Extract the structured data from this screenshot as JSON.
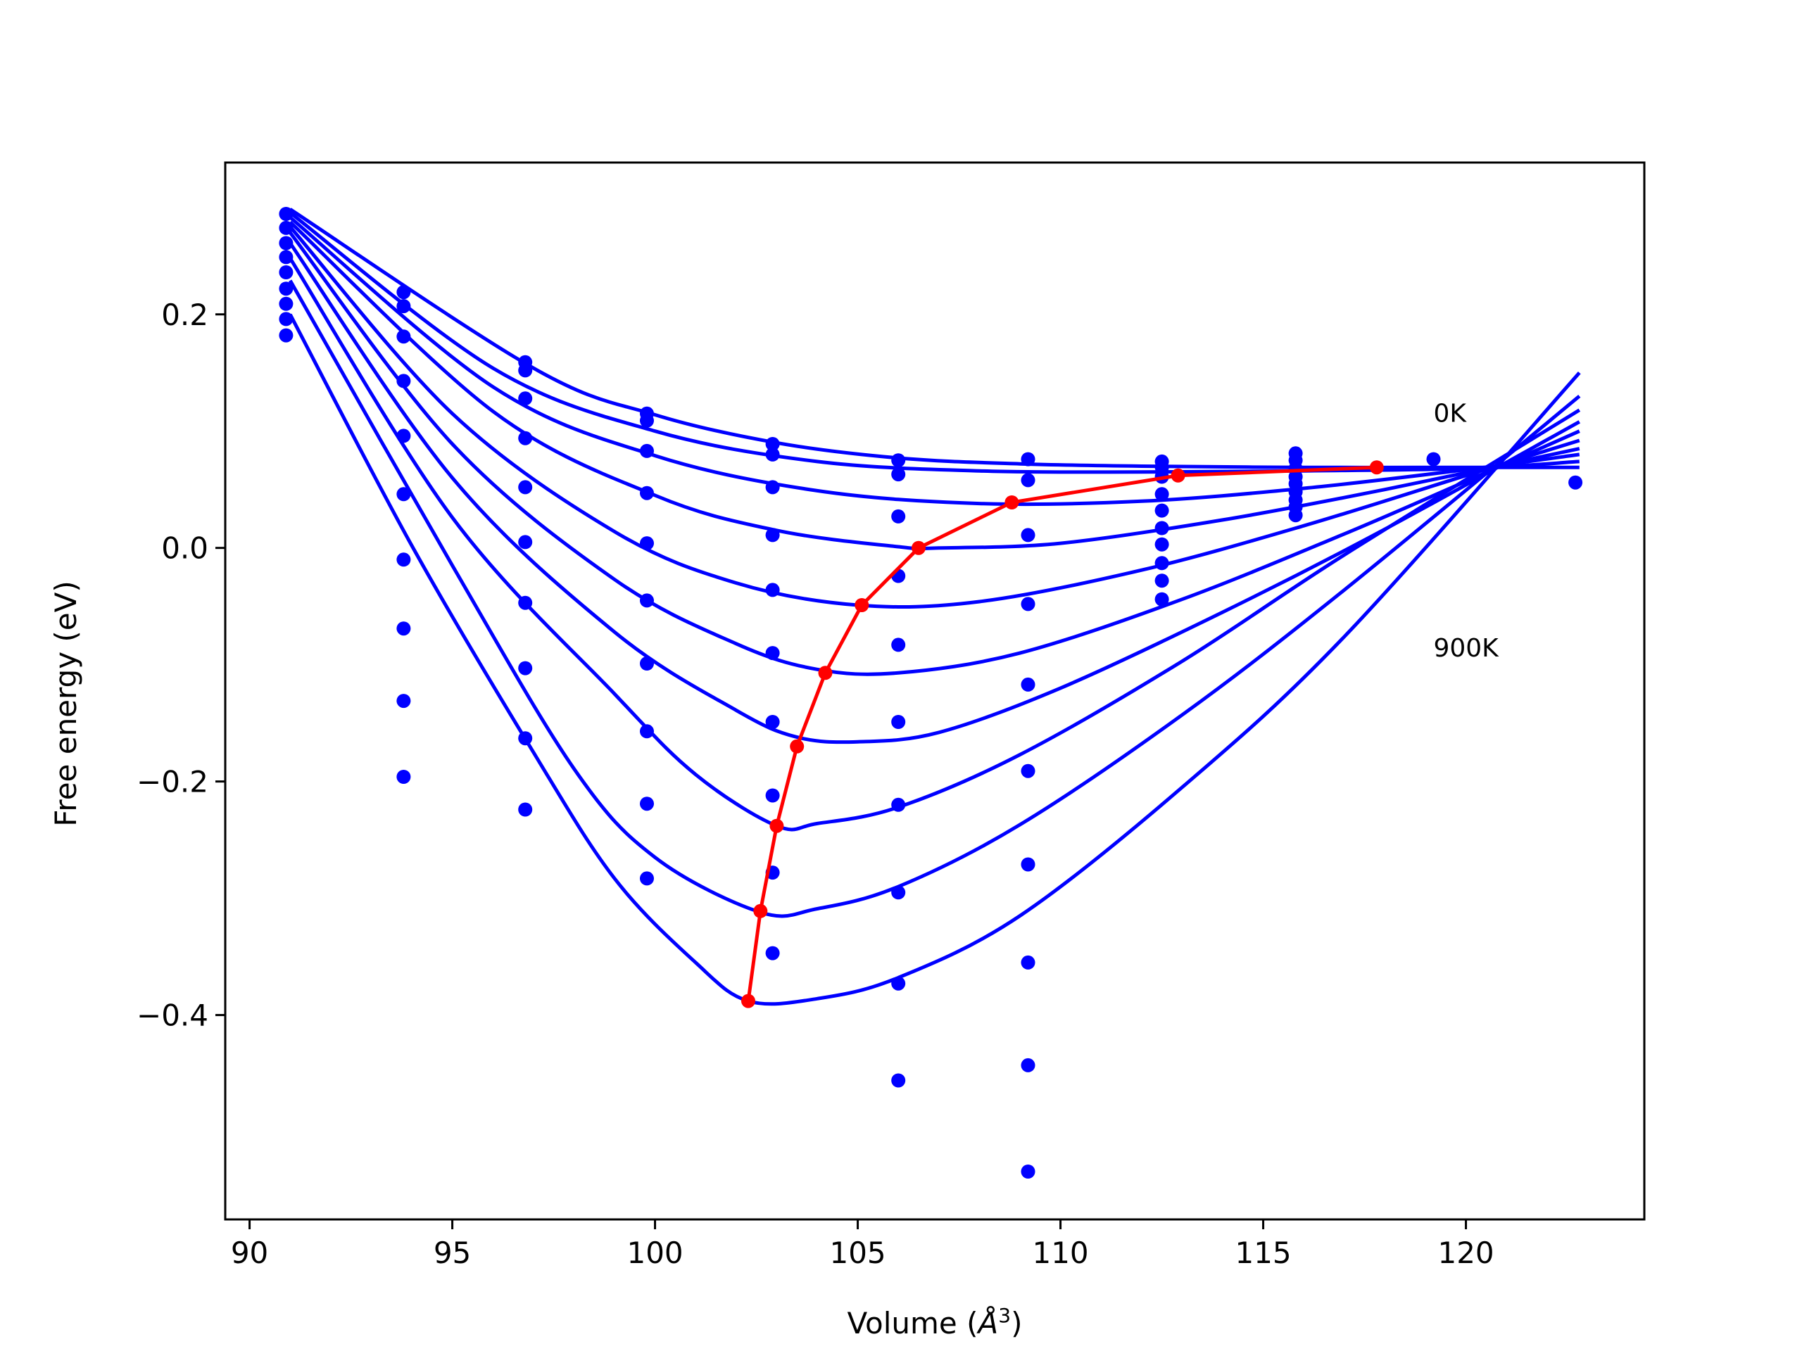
{
  "chart_data": {
    "type": "scatter",
    "xlabel_prefix": "Volume (",
    "xlabel_unit": "Å",
    "xlabel_exp": "3",
    "xlabel_suffix": ")",
    "ylabel": "Free energy (eV)",
    "xlim": [
      89.4,
      124.4
    ],
    "ylim": [
      -0.575,
      0.33
    ],
    "xticks": [
      90,
      95,
      100,
      105,
      110,
      115,
      120
    ],
    "xtick_labels": [
      "90",
      "95",
      "100",
      "105",
      "110",
      "115",
      "120"
    ],
    "yticks": [
      -0.4,
      -0.2,
      0.0,
      0.2
    ],
    "ytick_labels": [
      "−0.4",
      "−0.2",
      "0.0",
      "0.2"
    ],
    "annotations": [
      {
        "text": "0K",
        "x": 119.2,
        "y": 0.108
      },
      {
        "text": "900K",
        "x": 119.2,
        "y": -0.093
      }
    ],
    "colors": {
      "curves": "#0000ff",
      "points": "#0000ff",
      "minima": "#ff0000",
      "axes": "#000000"
    },
    "volumes": [
      90.9,
      93.8,
      96.8,
      99.8,
      102.9,
      106.0,
      109.2,
      112.5,
      115.8,
      119.2,
      122.7
    ],
    "scatter_points": [
      [
        90.9,
        0.286
      ],
      [
        90.9,
        0.274
      ],
      [
        90.9,
        0.261
      ],
      [
        90.9,
        0.249
      ],
      [
        90.9,
        0.236
      ],
      [
        90.9,
        0.222
      ],
      [
        90.9,
        0.209
      ],
      [
        90.9,
        0.196
      ],
      [
        90.9,
        0.182
      ],
      [
        93.8,
        0.219
      ],
      [
        93.8,
        0.207
      ],
      [
        93.8,
        0.181
      ],
      [
        93.8,
        0.143
      ],
      [
        93.8,
        0.096
      ],
      [
        93.8,
        0.046
      ],
      [
        93.8,
        -0.01
      ],
      [
        93.8,
        -0.069
      ],
      [
        93.8,
        -0.131
      ],
      [
        93.8,
        -0.196
      ],
      [
        96.8,
        0.159
      ],
      [
        96.8,
        0.152
      ],
      [
        96.8,
        0.128
      ],
      [
        96.8,
        0.094
      ],
      [
        96.8,
        0.052
      ],
      [
        96.8,
        0.005
      ],
      [
        96.8,
        -0.047
      ],
      [
        96.8,
        -0.103
      ],
      [
        96.8,
        -0.163
      ],
      [
        96.8,
        -0.224
      ],
      [
        99.8,
        0.115
      ],
      [
        99.8,
        0.109
      ],
      [
        99.8,
        0.083
      ],
      [
        99.8,
        0.047
      ],
      [
        99.8,
        0.004
      ],
      [
        99.8,
        -0.045
      ],
      [
        99.8,
        -0.099
      ],
      [
        99.8,
        -0.157
      ],
      [
        99.8,
        -0.219
      ],
      [
        99.8,
        -0.283
      ],
      [
        102.9,
        0.089
      ],
      [
        102.9,
        0.08
      ],
      [
        102.9,
        0.052
      ],
      [
        102.9,
        0.011
      ],
      [
        102.9,
        -0.036
      ],
      [
        102.9,
        -0.09
      ],
      [
        102.9,
        -0.149
      ],
      [
        102.9,
        -0.212
      ],
      [
        102.9,
        -0.278
      ],
      [
        102.9,
        -0.347
      ],
      [
        106.0,
        0.075
      ],
      [
        106.0,
        0.063
      ],
      [
        106.0,
        0.027
      ],
      [
        106.0,
        -0.024
      ],
      [
        106.0,
        -0.083
      ],
      [
        106.0,
        -0.149
      ],
      [
        106.0,
        -0.22
      ],
      [
        106.0,
        -0.295
      ],
      [
        106.0,
        -0.373
      ],
      [
        106.0,
        -0.456
      ],
      [
        109.2,
        0.076
      ],
      [
        109.2,
        0.058
      ],
      [
        109.2,
        0.011
      ],
      [
        109.2,
        -0.048
      ],
      [
        109.2,
        -0.117
      ],
      [
        109.2,
        -0.191
      ],
      [
        109.2,
        -0.271
      ],
      [
        109.2,
        -0.355
      ],
      [
        109.2,
        -0.443
      ],
      [
        109.2,
        -0.534
      ],
      [
        112.5,
        0.074
      ],
      [
        112.5,
        0.069
      ],
      [
        112.5,
        0.061
      ],
      [
        112.5,
        0.046
      ],
      [
        112.5,
        0.032
      ],
      [
        112.5,
        0.017
      ],
      [
        112.5,
        0.003
      ],
      [
        112.5,
        -0.013
      ],
      [
        112.5,
        -0.028
      ],
      [
        112.5,
        -0.044
      ],
      [
        115.8,
        0.081
      ],
      [
        115.8,
        0.075
      ],
      [
        115.8,
        0.068
      ],
      [
        115.8,
        0.061
      ],
      [
        115.8,
        0.055
      ],
      [
        115.8,
        0.048
      ],
      [
        115.8,
        0.041
      ],
      [
        115.8,
        0.035
      ],
      [
        115.8,
        0.028
      ],
      [
        119.2,
        0.076
      ],
      [
        122.7,
        0.056
      ]
    ],
    "series": [
      {
        "curve": [
          [
            91.0,
            0.29
          ],
          [
            97.0,
            0.154
          ],
          [
            100.0,
            0.114
          ],
          [
            103.0,
            0.09
          ],
          [
            106.0,
            0.077
          ],
          [
            109.0,
            0.072
          ],
          [
            112.0,
            0.07
          ],
          [
            116.0,
            0.069
          ],
          [
            120.0,
            0.069
          ],
          [
            122.8,
            0.069
          ]
        ]
      },
      {
        "curve": [
          [
            91.0,
            0.287
          ],
          [
            96.0,
            0.154
          ],
          [
            100.0,
            0.1
          ],
          [
            104.0,
            0.074
          ],
          [
            108.0,
            0.066
          ],
          [
            112.0,
            0.065
          ],
          [
            116.0,
            0.066
          ],
          [
            120.0,
            0.068
          ],
          [
            122.8,
            0.074
          ]
        ]
      },
      {
        "curve": [
          [
            91.0,
            0.283
          ],
          [
            96.0,
            0.138
          ],
          [
            100.0,
            0.079
          ],
          [
            104.0,
            0.049
          ],
          [
            108.0,
            0.038
          ],
          [
            112.0,
            0.04
          ],
          [
            116.0,
            0.051
          ],
          [
            120.0,
            0.067
          ],
          [
            122.8,
            0.08
          ]
        ]
      },
      {
        "curve": [
          [
            91.0,
            0.279
          ],
          [
            96.0,
            0.117
          ],
          [
            100.0,
            0.045
          ],
          [
            103.0,
            0.015
          ],
          [
            106.0,
            0.001
          ],
          [
            107.0,
            0.0
          ],
          [
            110.0,
            0.004
          ],
          [
            114.0,
            0.024
          ],
          [
            118.0,
            0.05
          ],
          [
            122.8,
            0.085
          ]
        ]
      },
      {
        "curve": [
          [
            91.0,
            0.275
          ],
          [
            95.0,
            0.115
          ],
          [
            99.0,
            0.014
          ],
          [
            102.0,
            -0.03
          ],
          [
            105.0,
            -0.049
          ],
          [
            108.0,
            -0.046
          ],
          [
            112.0,
            -0.019
          ],
          [
            116.0,
            0.019
          ],
          [
            120.0,
            0.062
          ],
          [
            122.8,
            0.092
          ]
        ]
      },
      {
        "curve": [
          [
            91.0,
            0.27
          ],
          [
            95.0,
            0.089
          ],
          [
            99.0,
            -0.027
          ],
          [
            102.0,
            -0.082
          ],
          [
            104.0,
            -0.104
          ],
          [
            106.0,
            -0.107
          ],
          [
            109.0,
            -0.09
          ],
          [
            113.0,
            -0.044
          ],
          [
            117.0,
            0.012
          ],
          [
            120.0,
            0.057
          ],
          [
            122.8,
            0.1
          ]
        ]
      },
      {
        "curve": [
          [
            91.0,
            0.261
          ],
          [
            95.0,
            0.06
          ],
          [
            99.0,
            -0.072
          ],
          [
            102.0,
            -0.139
          ],
          [
            103.5,
            -0.162
          ],
          [
            105.0,
            -0.166
          ],
          [
            107.0,
            -0.158
          ],
          [
            110.0,
            -0.12
          ],
          [
            114.0,
            -0.055
          ],
          [
            118.0,
            0.016
          ],
          [
            122.8,
            0.108
          ]
        ]
      },
      {
        "curve": [
          [
            91.0,
            0.248
          ],
          [
            95.0,
            0.026
          ],
          [
            99.0,
            -0.125
          ],
          [
            101.0,
            -0.194
          ],
          [
            103.0,
            -0.238
          ],
          [
            104.0,
            -0.236
          ],
          [
            106.0,
            -0.222
          ],
          [
            109.0,
            -0.177
          ],
          [
            113.0,
            -0.097
          ],
          [
            117.0,
            -0.006
          ],
          [
            122.8,
            0.118
          ]
        ]
      },
      {
        "curve": [
          [
            91.0,
            0.229
          ],
          [
            95.0,
            -0.015
          ],
          [
            98.0,
            -0.189
          ],
          [
            100.0,
            -0.265
          ],
          [
            102.6,
            -0.312
          ],
          [
            104.0,
            -0.309
          ],
          [
            106.0,
            -0.29
          ],
          [
            109.0,
            -0.237
          ],
          [
            113.0,
            -0.143
          ],
          [
            117.0,
            -0.036
          ],
          [
            122.8,
            0.13
          ]
        ]
      },
      {
        "curve": [
          [
            91.0,
            0.2
          ],
          [
            94.0,
            0.002
          ],
          [
            97.0,
            -0.175
          ],
          [
            99.0,
            -0.283
          ],
          [
            101.0,
            -0.355
          ],
          [
            102.3,
            -0.388
          ],
          [
            104.0,
            -0.386
          ],
          [
            106.0,
            -0.368
          ],
          [
            109.0,
            -0.315
          ],
          [
            113.0,
            -0.205
          ],
          [
            117.0,
            -0.076
          ],
          [
            122.8,
            0.15
          ]
        ]
      }
    ],
    "minima": [
      [
        117.8,
        0.069
      ],
      [
        112.9,
        0.062
      ],
      [
        108.8,
        0.039
      ],
      [
        106.5,
        0.0
      ],
      [
        105.1,
        -0.049
      ],
      [
        104.2,
        -0.107
      ],
      [
        103.5,
        -0.17
      ],
      [
        103.0,
        -0.238
      ],
      [
        102.6,
        -0.311
      ],
      [
        102.3,
        -0.388
      ]
    ]
  }
}
